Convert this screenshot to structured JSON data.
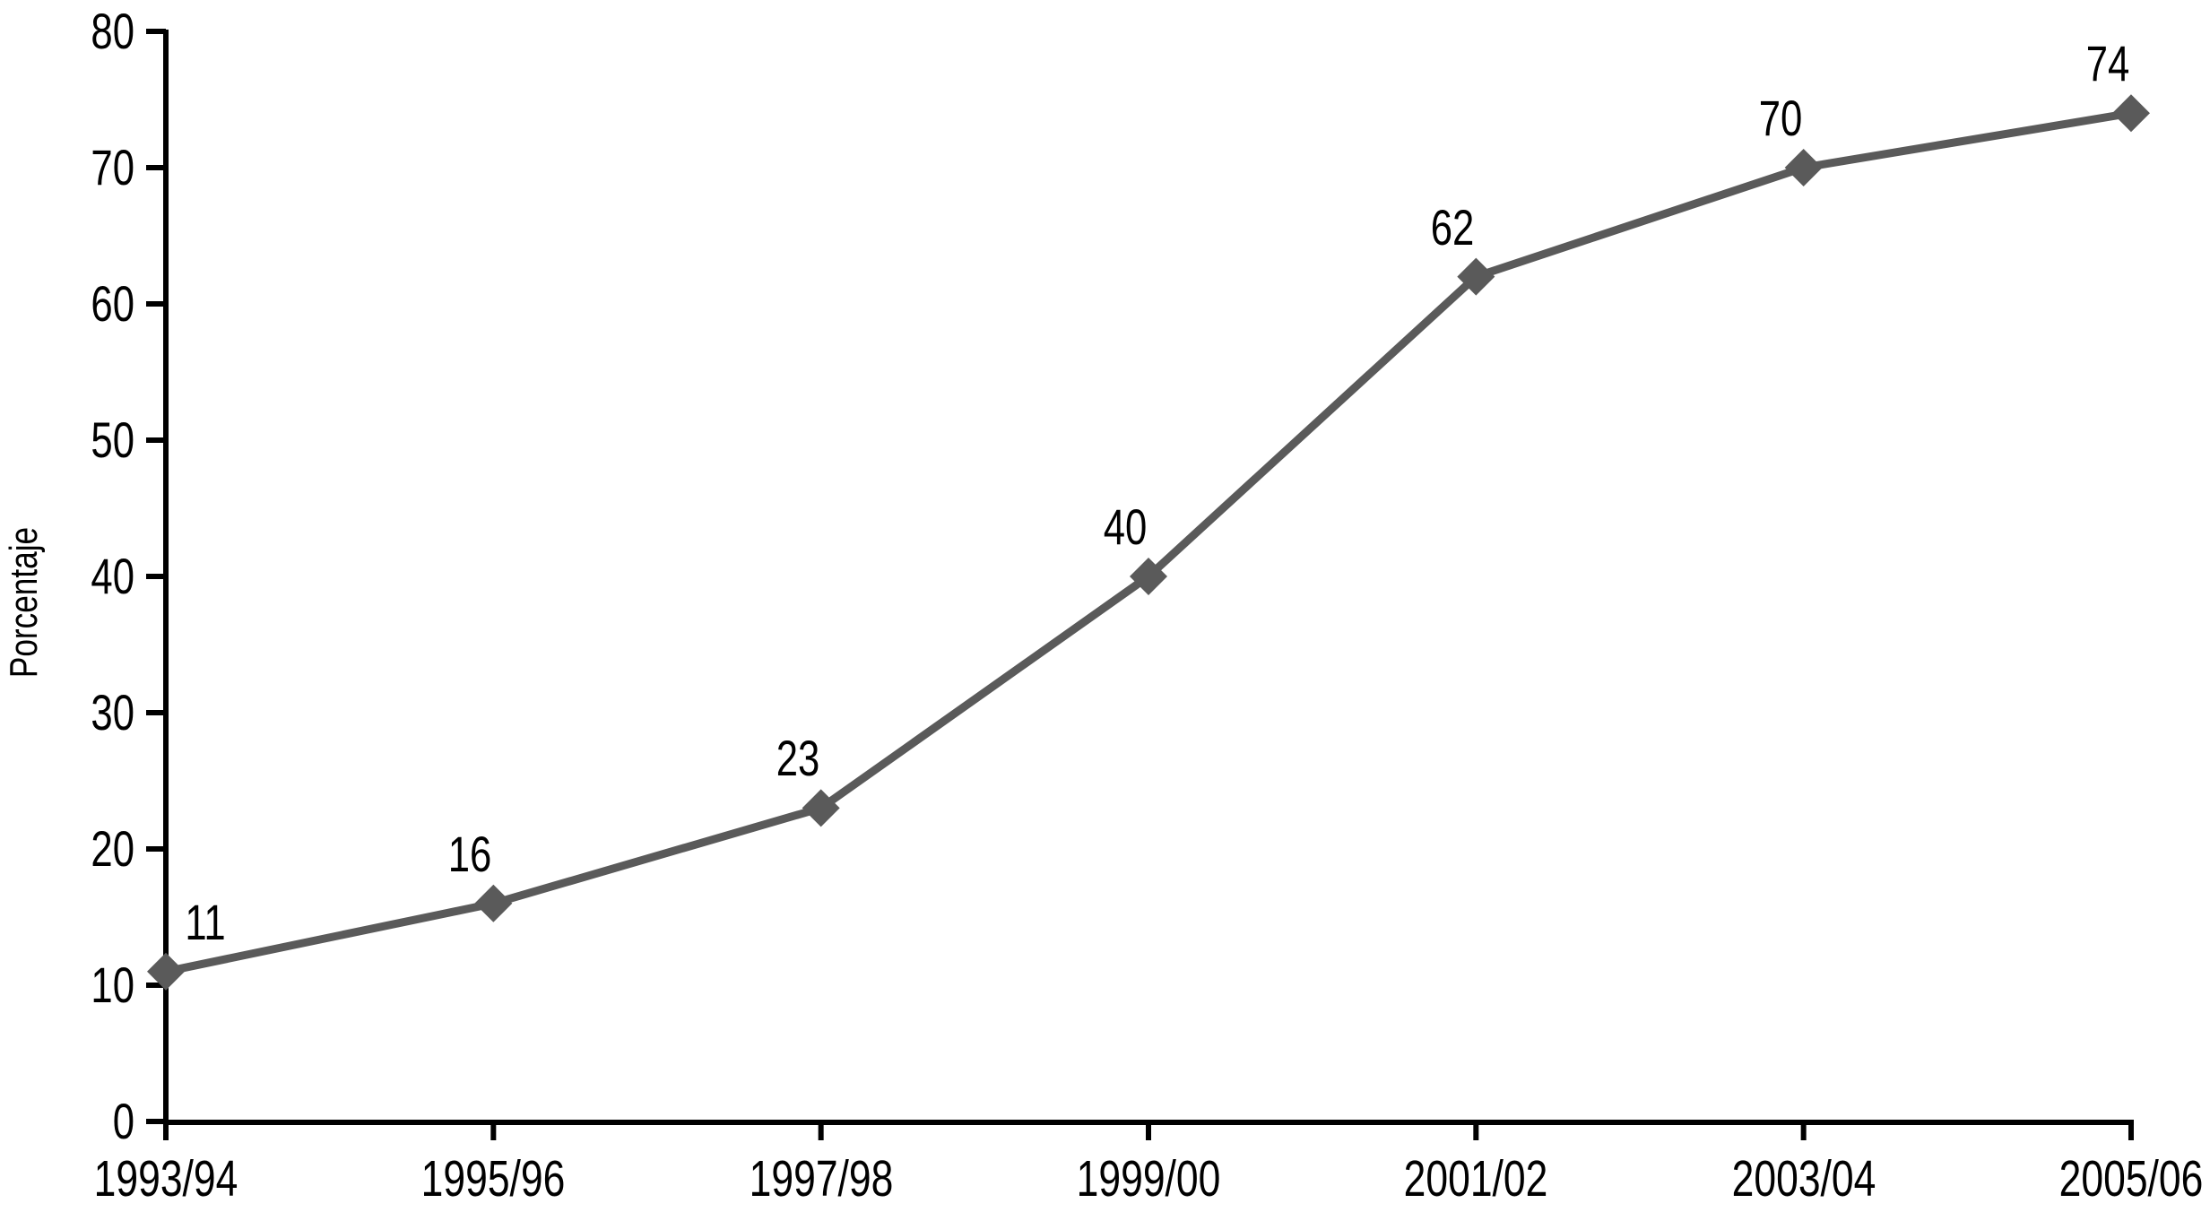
{
  "chart_data": {
    "type": "line",
    "title": "",
    "xlabel": "",
    "ylabel": "Porcentaje",
    "categories": [
      "1993/94",
      "1995/96",
      "1997/98",
      "1999/00",
      "2001/02",
      "2003/04",
      "2005/06"
    ],
    "values": [
      11,
      16,
      23,
      40,
      62,
      70,
      74
    ],
    "point_labels": [
      "11",
      "16",
      "23",
      "40",
      "62",
      "70",
      "74"
    ],
    "ylim": [
      0,
      80
    ],
    "yticks": [
      0,
      10,
      20,
      30,
      40,
      50,
      60,
      70,
      80
    ],
    "grid": false,
    "legend": "none",
    "marker_shape": "diamond",
    "line_color": "#5a5a5a",
    "marker_color": "#5a5a5a",
    "axis_color": "#000000",
    "text_color": "#000000",
    "background_color": "#ffffff"
  }
}
